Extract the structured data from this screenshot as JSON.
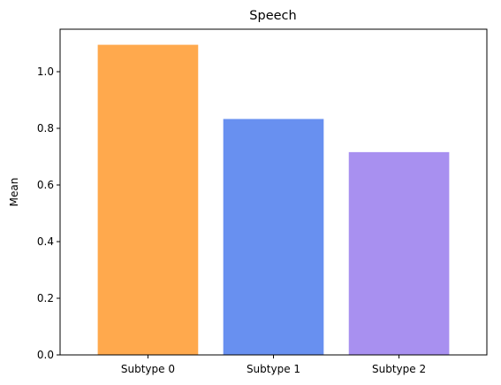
{
  "chart_data": {
    "type": "bar",
    "title": "Speech",
    "xlabel": "",
    "ylabel": "Mean",
    "categories": [
      "Subtype 0",
      "Subtype 1",
      "Subtype 2"
    ],
    "values": [
      1.095,
      0.833,
      0.716
    ],
    "colors": [
      "#ffa94d",
      "#6890f0",
      "#a890f0"
    ],
    "ylim": [
      0,
      1.15
    ],
    "yticks": [
      0.0,
      0.2,
      0.4,
      0.6,
      0.8,
      1.0
    ],
    "ytick_labels": [
      "0.0",
      "0.2",
      "0.4",
      "0.6",
      "0.8",
      "1.0"
    ],
    "grid": false,
    "legend": "none"
  }
}
